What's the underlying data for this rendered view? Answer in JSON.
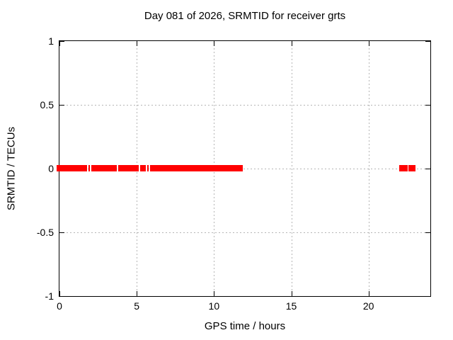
{
  "chart_data": {
    "type": "scatter",
    "title": "Day 081 of 2026, SRMTID for receiver grts",
    "xlabel": "GPS time / hours",
    "ylabel": "SRMTID / TECUs",
    "xlim": [
      0,
      24
    ],
    "ylim": [
      -1,
      1
    ],
    "xticks": [
      0,
      5,
      10,
      15,
      20
    ],
    "xtick_labels": [
      "0",
      "5",
      "10",
      "15",
      "20"
    ],
    "yticks": [
      -1,
      -0.5,
      0,
      0.5,
      1
    ],
    "ytick_labels": [
      "-1",
      "-0.5",
      "0",
      "0.5",
      "1"
    ],
    "grid": true,
    "legend": "none",
    "frame_color": "#000000",
    "grid_color": "#b5b5b5",
    "background_color": "#ffffff",
    "series": [
      {
        "name": "SRMTID",
        "marker": "filled-square",
        "color": "#ff0000",
        "value": 0,
        "segments_hours": [
          [
            0.0,
            1.78
          ],
          [
            1.87,
            1.96
          ],
          [
            2.05,
            3.72
          ],
          [
            3.81,
            5.11
          ],
          [
            5.2,
            5.57
          ],
          [
            5.66,
            5.75
          ],
          [
            5.84,
            11.86
          ],
          [
            21.99,
            22.53
          ],
          [
            22.58,
            23.04
          ]
        ]
      }
    ]
  }
}
